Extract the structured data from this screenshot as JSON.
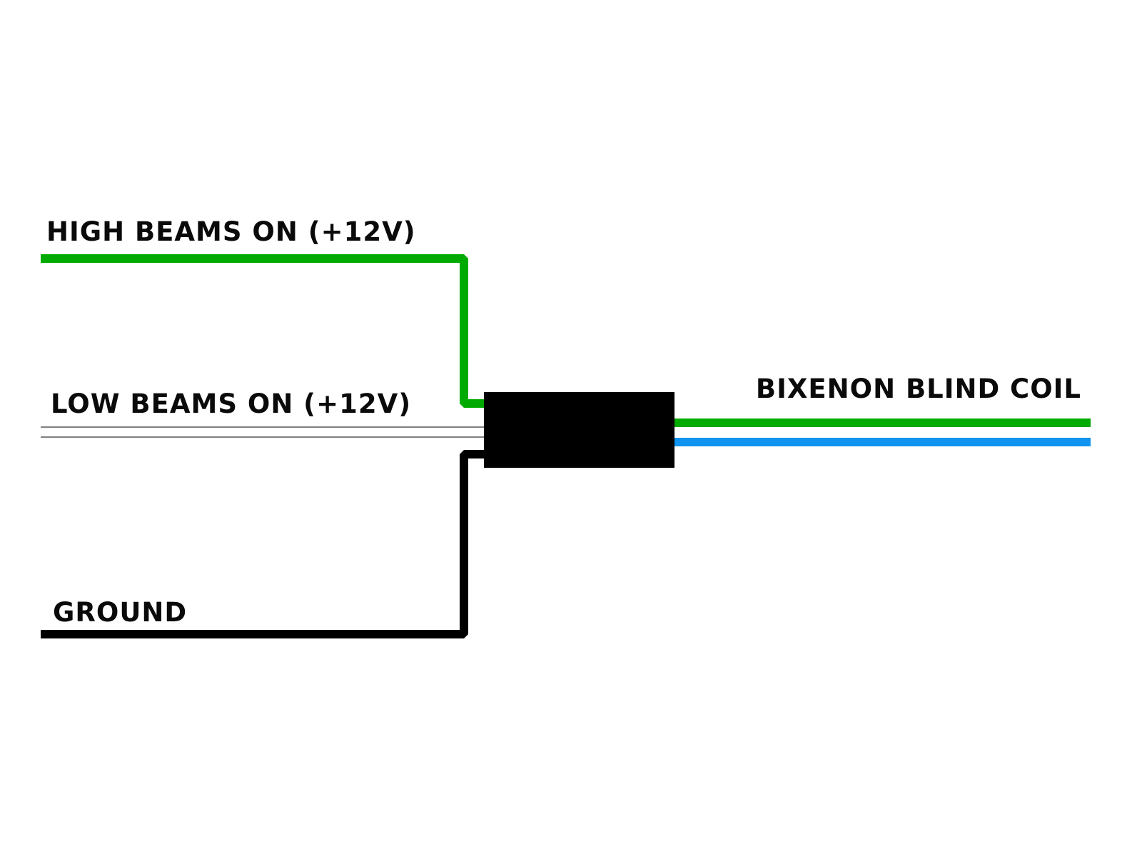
{
  "labels": {
    "high_beams": "HIGH BEAMS ON (+12V)",
    "low_beams": "LOW BEAMS ON (+12V)",
    "ground": "GROUND",
    "coil": "BIXENON BLIND COIL"
  },
  "colors": {
    "high_beam_wire": "#00aa00",
    "low_beam_wire": "#ffffff",
    "ground_wire": "#000000",
    "coil_wire_1": "#00aa00",
    "coil_wire_2": "#1094f0",
    "module": "#000000",
    "background": "#ffffff"
  }
}
